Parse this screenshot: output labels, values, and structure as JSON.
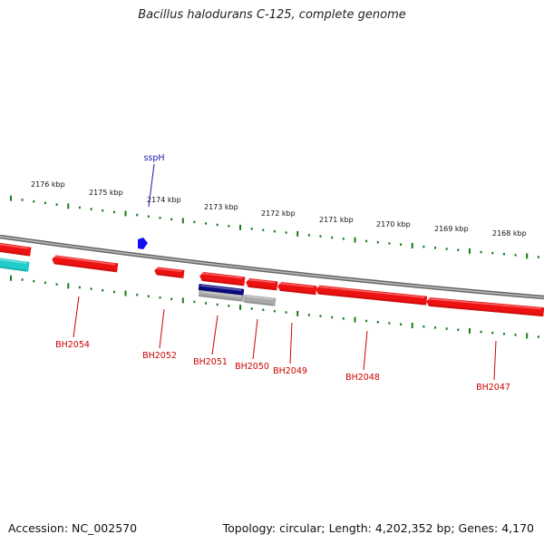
{
  "title": "Bacillus halodurans C-125, complete genome",
  "footer": {
    "accession": "Accession: NC_002570",
    "summary": "Topology: circular; Length: 4,202,352 bp; Genes: 4,170"
  },
  "colors": {
    "forward_gene": "#ee1111",
    "reverse_gene": "#ee1111",
    "cyan_gene": "#22cccc",
    "navy_gene": "#0a0a80",
    "gray_gene": "#aaaaaa",
    "blue_feature": "#1111ee",
    "backbone": "#888888",
    "tick": "#1a7a1a",
    "label_red": "#cc0000",
    "label_blue": "#1a1aa6"
  },
  "ruler": {
    "labels": [
      "2176 kbp",
      "2175 kbp",
      "2174 kbp",
      "2173 kbp",
      "2172 kbp",
      "2171 kbp",
      "2170 kbp",
      "2169 kbp",
      "2168 kbp"
    ]
  },
  "features": {
    "upper_labels": [
      "sspH"
    ],
    "lower_labels": [
      "BH2054",
      "BH2052",
      "BH2051",
      "BH2050",
      "BH2049",
      "BH2048",
      "BH2047"
    ]
  }
}
